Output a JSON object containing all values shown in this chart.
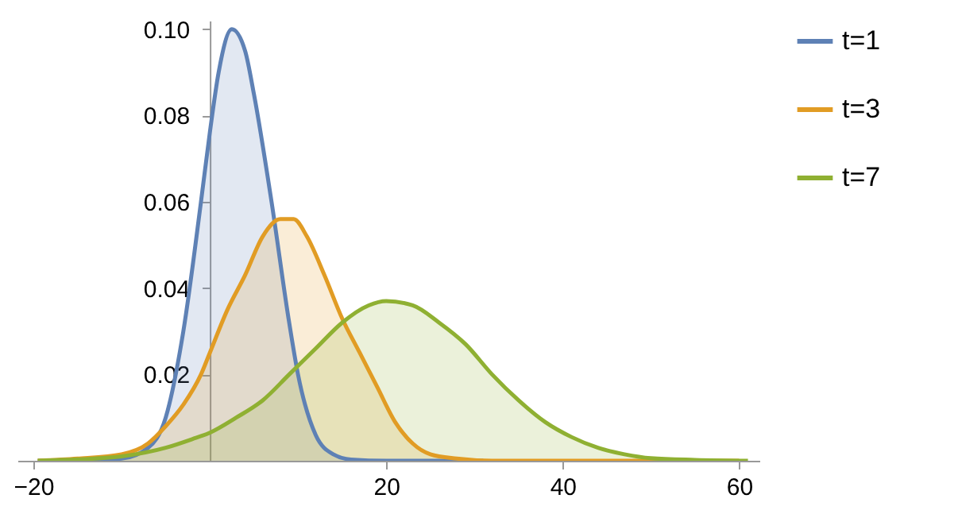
{
  "chart_data": {
    "type": "area",
    "xlim": [
      -21.8,
      62.3
    ],
    "ylim": [
      0,
      0.102
    ],
    "xticks": [
      -20,
      20,
      40,
      60
    ],
    "yticks": [
      0.02,
      0.04,
      0.06,
      0.08,
      {
        "value": 0.1,
        "label": "0.10"
      }
    ],
    "grid": false,
    "legend": "right",
    "series": [
      {
        "name": "t=1",
        "color": "#5e81b5",
        "x": [
          -19.5,
          -15,
          -10,
          -7,
          -5,
          -3,
          -1,
          0,
          1,
          2.5,
          4,
          5,
          7,
          9,
          10,
          12,
          14,
          16,
          20,
          31
        ],
        "values": [
          0,
          0,
          0.0005,
          0.003,
          0.01,
          0.03,
          0.06,
          0.076,
          0.09,
          0.1,
          0.095,
          0.085,
          0.06,
          0.032,
          0.02,
          0.006,
          0.0015,
          0.0003,
          0,
          0
        ]
      },
      {
        "name": "t=3",
        "color": "#e19c24",
        "x": [
          -19.5,
          -15,
          -10,
          -7,
          -5,
          -3,
          -1,
          0,
          2,
          4,
          6,
          8,
          9.5,
          11,
          13,
          15,
          17,
          19,
          21,
          23,
          25,
          28,
          32,
          60
        ],
        "values": [
          0,
          0.0005,
          0.0015,
          0.004,
          0.008,
          0.013,
          0.02,
          0.025,
          0.035,
          0.043,
          0.052,
          0.056,
          0.056,
          0.052,
          0.043,
          0.033,
          0.025,
          0.017,
          0.009,
          0.004,
          0.0015,
          0.0005,
          0,
          0
        ]
      },
      {
        "name": "t=7",
        "color": "#8fb032",
        "x": [
          -19.5,
          -15,
          -10,
          -5,
          -2,
          0,
          3,
          6,
          9,
          12,
          15,
          18,
          20,
          23,
          26,
          29,
          32,
          35,
          38,
          41,
          44,
          47,
          50,
          55,
          61
        ],
        "values": [
          0,
          0.0003,
          0.001,
          0.003,
          0.005,
          0.0065,
          0.01,
          0.014,
          0.02,
          0.026,
          0.032,
          0.036,
          0.037,
          0.036,
          0.032,
          0.027,
          0.02,
          0.014,
          0.009,
          0.0055,
          0.003,
          0.0015,
          0.0006,
          0.0002,
          0
        ]
      }
    ]
  }
}
